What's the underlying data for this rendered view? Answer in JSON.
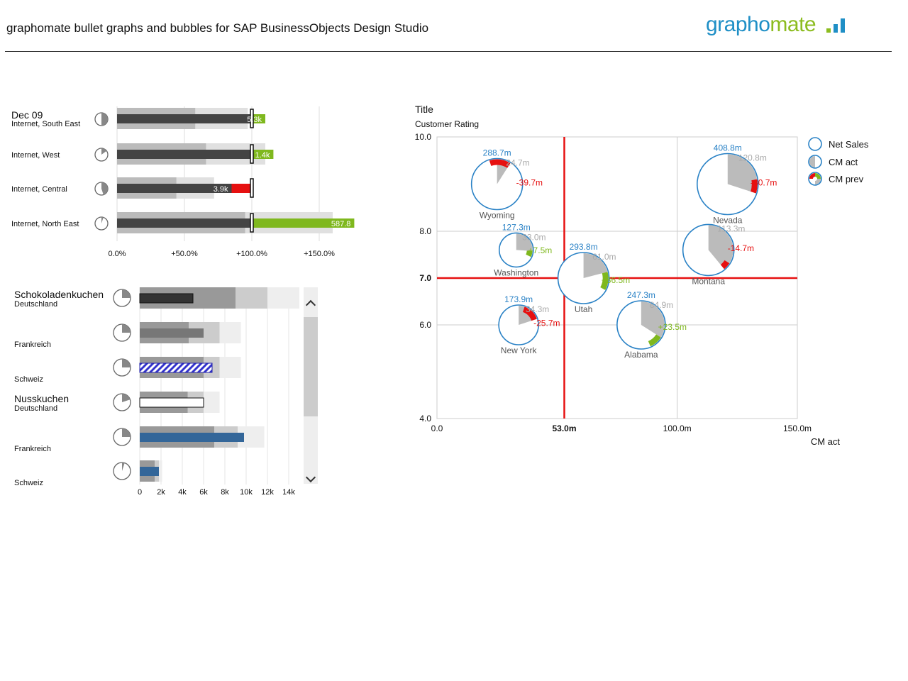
{
  "header": {
    "title": "graphomate bullet graphs and bubbles for SAP BusinessObjects Design Studio",
    "logo": {
      "text_part1": "grapho",
      "text_part2": "mate",
      "color1": "#1f8fc6",
      "color2": "#8cbc1f"
    }
  },
  "colors": {
    "actual": "#444444",
    "positive": "#7fb81e",
    "negative": "#e61010",
    "netsales": "#2a82c6",
    "gray": "#bbbbbb",
    "hatch": "#3333cc",
    "steel": "#336699"
  },
  "chart_data": [
    {
      "type": "bar",
      "name": "bullet-graph-top",
      "group_label": "Dec 09",
      "categories": [
        "Internet, South East",
        "Internet, West",
        "Internet, Central",
        "Internet, North East"
      ],
      "actual_pct": [
        100,
        100,
        85,
        100
      ],
      "variance_pct": [
        10,
        16,
        -13,
        76
      ],
      "value_labels": [
        "5.3k",
        "1.4k",
        "3.9k",
        "587.8"
      ],
      "range_dark_pct": [
        58,
        66,
        44,
        95
      ],
      "range_light_pct": [
        97,
        110,
        72,
        160
      ],
      "target_pct": 100,
      "pie_fraction": [
        0.5,
        0.15,
        0.45,
        0.05
      ],
      "xticks": [
        "0.0%",
        "+50.0%",
        "+100.0%",
        "+150.0%"
      ],
      "xlim": [
        0,
        150
      ]
    },
    {
      "type": "bar",
      "name": "bullet-graph-bottom",
      "rows": [
        {
          "group": "Schokoladenkuchen",
          "sub": "Deutschland",
          "label": "",
          "value": 5000,
          "ranges": [
            9000,
            12000,
            15000
          ],
          "style": "dark",
          "pie": 0.25
        },
        {
          "group": "",
          "sub": "",
          "label": "Frankreich",
          "value": 6000,
          "ranges": [
            4600,
            7500,
            9500
          ],
          "style": "gray",
          "pie": 0.25
        },
        {
          "group": "",
          "sub": "",
          "label": "Schweiz",
          "value": 6800,
          "ranges": [
            6000,
            7500,
            9500
          ],
          "style": "hatch",
          "pie": 0.25
        },
        {
          "group": "Nusskuchen",
          "sub": "Deutschland",
          "label": "",
          "value": 6000,
          "ranges": [
            4500,
            6000,
            7500
          ],
          "style": "outline",
          "pie": 0.2
        },
        {
          "group": "",
          "sub": "",
          "label": "Frankreich",
          "value": 9800,
          "ranges": [
            7000,
            9200,
            11700
          ],
          "style": "steel",
          "pie": 0.25
        },
        {
          "group": "",
          "sub": "",
          "label": "Schweiz",
          "value": 1800,
          "ranges": [
            1400,
            1800,
            2100
          ],
          "style": "steel",
          "pie": 0.05
        }
      ],
      "xticks": [
        "0",
        "2k",
        "4k",
        "6k",
        "8k",
        "10k",
        "12k",
        "14k"
      ],
      "xlim": [
        0,
        14000
      ]
    },
    {
      "type": "scatter",
      "name": "bubble-chart",
      "title": "Title",
      "ylabel": "Customer Rating",
      "xlabel": "CM act",
      "xlim": [
        0,
        150
      ],
      "ylim": [
        4,
        10
      ],
      "xticks": [
        "0.0",
        "53.0m",
        "100.0m",
        "150.0m"
      ],
      "xtick_values": [
        0,
        53,
        100,
        150
      ],
      "yticks": [
        "10.0",
        "8.0",
        "7.0",
        "6.0",
        "4.0"
      ],
      "ytick_values": [
        10,
        8,
        7,
        6,
        4
      ],
      "ref_x": 53,
      "ref_y": 7,
      "legend": [
        "Net Sales",
        "CM act",
        "CM prev"
      ],
      "legend_position": "top-right",
      "points": [
        {
          "name": "Wyoming",
          "x": 25,
          "y": 9.0,
          "net_sales": "288.7m",
          "cm_act": "24.7m",
          "cm_delta": "-39.7m",
          "r": 36,
          "gray_frac": 0.09,
          "delta_frac": -0.14
        },
        {
          "name": "Nevada",
          "x": 121,
          "y": 9.0,
          "net_sales": "408.8m",
          "cm_act": "120.8m",
          "cm_delta": "-30.7m",
          "r": 43,
          "gray_frac": 0.3,
          "delta_frac": -0.075
        },
        {
          "name": "Washington",
          "x": 33,
          "y": 7.6,
          "net_sales": "127.3m",
          "cm_act": "33.0m",
          "cm_delta": "+7.5m",
          "r": 24,
          "gray_frac": 0.26,
          "delta_frac": 0.06
        },
        {
          "name": "Utah",
          "x": 61,
          "y": 7.0,
          "net_sales": "293.8m",
          "cm_act": "61.0m",
          "cm_delta": "+36.5m",
          "r": 36,
          "gray_frac": 0.21,
          "delta_frac": 0.12
        },
        {
          "name": "Montana",
          "x": 113,
          "y": 7.6,
          "net_sales": "",
          "cm_act": "113.3m",
          "cm_delta": "-14.7m",
          "r": 36,
          "gray_frac": 0.39,
          "delta_frac": -0.05
        },
        {
          "name": "New York",
          "x": 34,
          "y": 6.0,
          "net_sales": "173.9m",
          "cm_act": "34.3m",
          "cm_delta": "-25.7m",
          "r": 28,
          "gray_frac": 0.2,
          "delta_frac": -0.15
        },
        {
          "name": "Alabama",
          "x": 85,
          "y": 6.0,
          "net_sales": "247.3m",
          "cm_act": "84.9m",
          "cm_delta": "+23.5m",
          "r": 34,
          "gray_frac": 0.34,
          "delta_frac": 0.095
        }
      ]
    }
  ]
}
